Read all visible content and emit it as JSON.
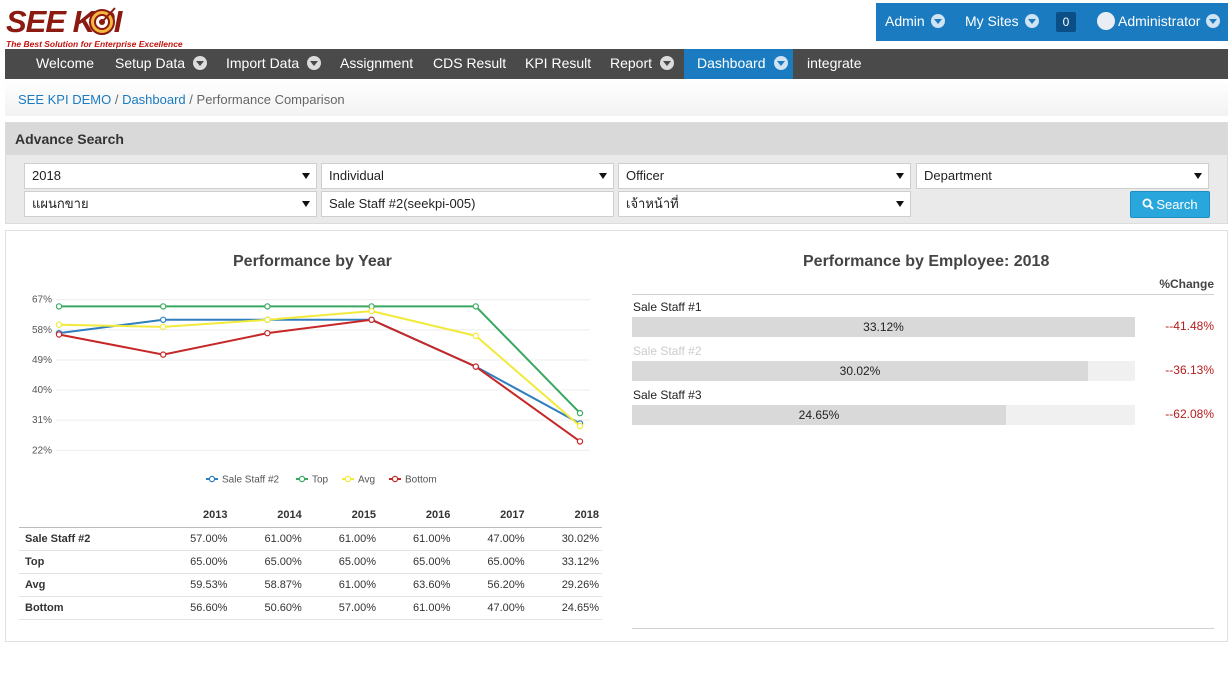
{
  "brand": {
    "logo_text": "SEE KPI",
    "tagline": "The Best Solution for Enterprise Excellence"
  },
  "usernav": {
    "admin": "Admin",
    "my_sites": "My Sites",
    "notifications": "0",
    "user": "Administrator"
  },
  "nav": {
    "items": [
      "Welcome",
      "Setup Data",
      "Import Data",
      "Assignment",
      "CDS Result",
      "KPI Result",
      "Report",
      "Dashboard",
      "integrate"
    ],
    "active": "Dashboard"
  },
  "breadcrumb": {
    "root": "SEE KPI DEMO",
    "section": "Dashboard",
    "current": "Performance Comparison"
  },
  "search": {
    "title": "Advance Search",
    "year": "2018",
    "type": "Individual",
    "position": "Officer",
    "org_level": "Department",
    "organization": "แผนกขาย",
    "employee": "Sale Staff #2(seekpi-005)",
    "role": "เจ้าหน้าที่",
    "button": "Search"
  },
  "chart_data": {
    "type": "line",
    "title": "Performance by Year",
    "x": [
      "2013",
      "2014",
      "2015",
      "2016",
      "2017",
      "2018"
    ],
    "ylim": [
      20,
      69
    ],
    "yticks": [
      "67%",
      "58%",
      "49%",
      "40%",
      "31%",
      "22%"
    ],
    "ytick_values": [
      67,
      58,
      49,
      40,
      31,
      22
    ],
    "series": [
      {
        "name": "Sale Staff #2",
        "color": "#2f7fbf",
        "values": [
          57.0,
          61.0,
          61.0,
          61.0,
          47.0,
          30.02
        ]
      },
      {
        "name": "Top",
        "color": "#3aa860",
        "values": [
          65.0,
          65.0,
          65.0,
          65.0,
          65.0,
          33.12
        ]
      },
      {
        "name": "Avg",
        "color": "#f2ea3a",
        "values": [
          59.53,
          58.87,
          61.0,
          63.6,
          56.2,
          29.26
        ]
      },
      {
        "name": "Bottom",
        "color": "#c62828",
        "values": [
          56.6,
          50.6,
          57.0,
          61.0,
          47.0,
          24.65
        ]
      }
    ],
    "legend": "bottom"
  },
  "table": {
    "headers": [
      "",
      "2013",
      "2014",
      "2015",
      "2016",
      "2017",
      "2018"
    ],
    "rows": [
      [
        "Sale Staff #2",
        "57.00%",
        "61.00%",
        "61.00%",
        "61.00%",
        "47.00%",
        "30.02%"
      ],
      [
        "Top",
        "65.00%",
        "65.00%",
        "65.00%",
        "65.00%",
        "65.00%",
        "33.12%"
      ],
      [
        "Avg",
        "59.53%",
        "58.87%",
        "61.00%",
        "63.60%",
        "56.20%",
        "29.26%"
      ],
      [
        "Bottom",
        "56.60%",
        "50.60%",
        "57.00%",
        "61.00%",
        "47.00%",
        "24.65%"
      ]
    ]
  },
  "employee_chart": {
    "title": "Performance by Employee: 2018",
    "change_header": "%Change",
    "rows": [
      {
        "name": "Sale Staff #1",
        "value_label": "33.12%",
        "fill_fraction": 1.0,
        "change": "--41.48%"
      },
      {
        "name": "Sale Staff #2",
        "value_label": "30.02%",
        "fill_fraction": 0.906,
        "change": "--36.13%"
      },
      {
        "name": "Sale Staff #3",
        "value_label": "24.65%",
        "fill_fraction": 0.744,
        "change": "--62.08%"
      }
    ]
  }
}
